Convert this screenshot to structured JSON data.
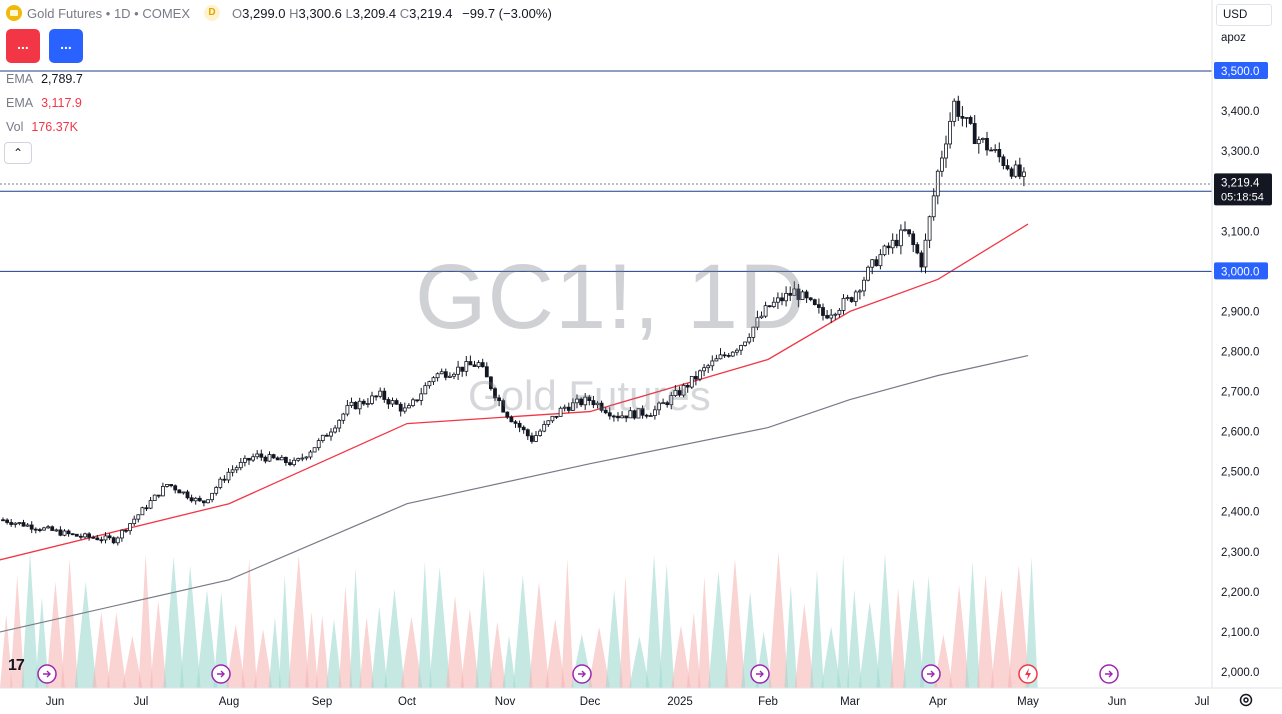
{
  "header": {
    "symbol_title": "Gold Futures",
    "interval": "1D",
    "exchange": "COMEX",
    "data_flag": "D",
    "ohlc": [
      {
        "key": "O",
        "value": "3,299.0"
      },
      {
        "key": "H",
        "value": "3,300.6"
      },
      {
        "key": "L",
        "value": "3,209.4"
      },
      {
        "key": "C",
        "value": "3,219.4"
      }
    ],
    "change": "−99.7 (−3.00%)"
  },
  "buttons": {
    "sell_label": "...",
    "buy_label": "..."
  },
  "indicators": [
    {
      "name": "EMA",
      "value": "2,789.7",
      "color": "#131722"
    },
    {
      "name": "EMA",
      "value": "3,117.9",
      "color": "#f23645"
    },
    {
      "name": "Vol",
      "value": "176.37K",
      "color": "#f23645"
    }
  ],
  "collapse_icon": "chevron-up-icon",
  "watermark": {
    "symbol": "GC1!, 1D",
    "description": "Gold Futures"
  },
  "right_panel": {
    "currency": "USD",
    "scale_mode": "apoz"
  },
  "price_axis": {
    "ticks": [
      "3,400.0",
      "3,300.0",
      "3,100.0",
      "2,900.0",
      "2,800.0",
      "2,700.0",
      "2,600.0",
      "2,500.0",
      "2,400.0",
      "2,300.0",
      "2,200.0",
      "2,100.0",
      "2,000.0"
    ],
    "tick_values": [
      3400,
      3300,
      3100,
      2900,
      2800,
      2700,
      2600,
      2500,
      2400,
      2300,
      2200,
      2100,
      2000
    ],
    "level_labels": [
      {
        "text": "3,500.0",
        "value": 3500
      },
      {
        "text": "3,200.0",
        "value": 3200
      },
      {
        "text": "3,000.0",
        "value": 3000
      }
    ],
    "last_price": {
      "text": "3,219.4",
      "value": 3219.4,
      "countdown": "05:18:54"
    }
  },
  "time_axis": {
    "labels": [
      "Jun",
      "Jul",
      "Aug",
      "Sep",
      "Oct",
      "Nov",
      "Dec",
      "2025",
      "Feb",
      "Mar",
      "Apr",
      "May",
      "Jun",
      "Jul"
    ]
  },
  "colors": {
    "up": "#131722",
    "down": "#131722",
    "ema_fast": "#f23645",
    "ema_slow": "#787b86",
    "level_line": "#2962ff",
    "vol_up": "#9fd8d1",
    "vol_down": "#f7b5b5"
  },
  "chart_data": {
    "type": "candlestick",
    "symbol": "GC1!",
    "interval": "1D",
    "ylim": [
      2000,
      3500
    ],
    "horizontal_levels": [
      3500,
      3200,
      3000
    ],
    "price_path": [
      [
        "Jun",
        2380
      ],
      [
        "Jun",
        2340
      ],
      [
        "Jul",
        2330
      ],
      [
        "Jul",
        2400
      ],
      [
        "Jul",
        2470
      ],
      [
        "Aug",
        2420
      ],
      [
        "Aug",
        2500
      ],
      [
        "Aug",
        2540
      ],
      [
        "Sep",
        2520
      ],
      [
        "Sep",
        2580
      ],
      [
        "Sep",
        2660
      ],
      [
        "Oct",
        2690
      ],
      [
        "Oct",
        2650
      ],
      [
        "Oct",
        2740
      ],
      [
        "Nov",
        2770
      ],
      [
        "Nov",
        2650
      ],
      [
        "Nov",
        2580
      ],
      [
        "Dec",
        2660
      ],
      [
        "Dec",
        2680
      ],
      [
        "Dec",
        2640
      ],
      [
        "2025",
        2650
      ],
      [
        "2025",
        2700
      ],
      [
        "2025",
        2760
      ],
      [
        "Feb",
        2820
      ],
      [
        "Feb",
        2910
      ],
      [
        "Feb",
        2950
      ],
      [
        "Mar",
        2890
      ],
      [
        "Mar",
        2930
      ],
      [
        "Mar",
        3030
      ],
      [
        "Apr",
        3100
      ],
      [
        "Apr",
        3020
      ],
      [
        "Apr",
        3250
      ],
      [
        "Apr",
        3420
      ],
      [
        "Apr",
        3350
      ],
      [
        "May",
        3219.4
      ]
    ],
    "ema_fast_path": [
      [
        "Jun",
        2280
      ],
      [
        "Aug",
        2420
      ],
      [
        "Oct",
        2620
      ],
      [
        "Dec",
        2650
      ],
      [
        "Feb",
        2780
      ],
      [
        "Mar",
        2900
      ],
      [
        "Apr",
        2980
      ],
      [
        "May",
        3117.9
      ]
    ],
    "ema_slow_path": [
      [
        "Jun",
        2100
      ],
      [
        "Aug",
        2230
      ],
      [
        "Oct",
        2420
      ],
      [
        "Dec",
        2520
      ],
      [
        "Feb",
        2610
      ],
      [
        "Mar",
        2680
      ],
      [
        "Apr",
        2740
      ],
      [
        "May",
        2789.7
      ]
    ],
    "volume_last": "176.37K"
  }
}
